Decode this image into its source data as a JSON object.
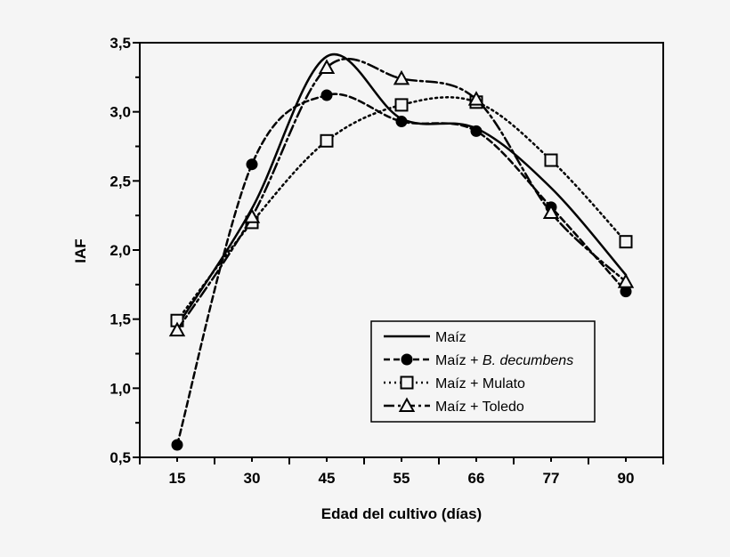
{
  "chart_data": {
    "type": "line",
    "xlabel": "Edad del cultivo (días)",
    "ylabel": "IAF",
    "categories": [
      "15",
      "30",
      "45",
      "55",
      "66",
      "77",
      "90"
    ],
    "ylim": [
      0.5,
      3.5
    ],
    "yticks": [
      "0,5",
      "1,0",
      "1,5",
      "2,0",
      "2,5",
      "3,0",
      "3,5"
    ],
    "grid": false,
    "legend_position": "bottom-right",
    "series": [
      {
        "name": "Maíz",
        "name_prefix": "Maíz",
        "name_italic": "",
        "marker": "none",
        "dash": "solid",
        "values": [
          1.45,
          2.3,
          3.4,
          2.95,
          2.88,
          2.45,
          1.82
        ]
      },
      {
        "name": "Maíz + B. decumbens",
        "name_prefix": "Maíz + ",
        "name_italic": "B. decumbens",
        "marker": "circle",
        "dash": "dashed",
        "values": [
          0.59,
          2.62,
          3.12,
          2.93,
          2.86,
          2.31,
          1.7
        ]
      },
      {
        "name": "Maíz + Mulato",
        "name_prefix": "Maíz + Mulato",
        "name_italic": "",
        "marker": "square",
        "dash": "dotted",
        "values": [
          1.49,
          2.2,
          2.79,
          3.05,
          3.07,
          2.65,
          2.06
        ]
      },
      {
        "name": "Maíz + Toledo",
        "name_prefix": "Maíz + Toledo",
        "name_italic": "",
        "marker": "triangle",
        "dash": "dashdot",
        "values": [
          1.42,
          2.24,
          3.32,
          3.24,
          3.09,
          2.27,
          1.77
        ]
      }
    ]
  }
}
